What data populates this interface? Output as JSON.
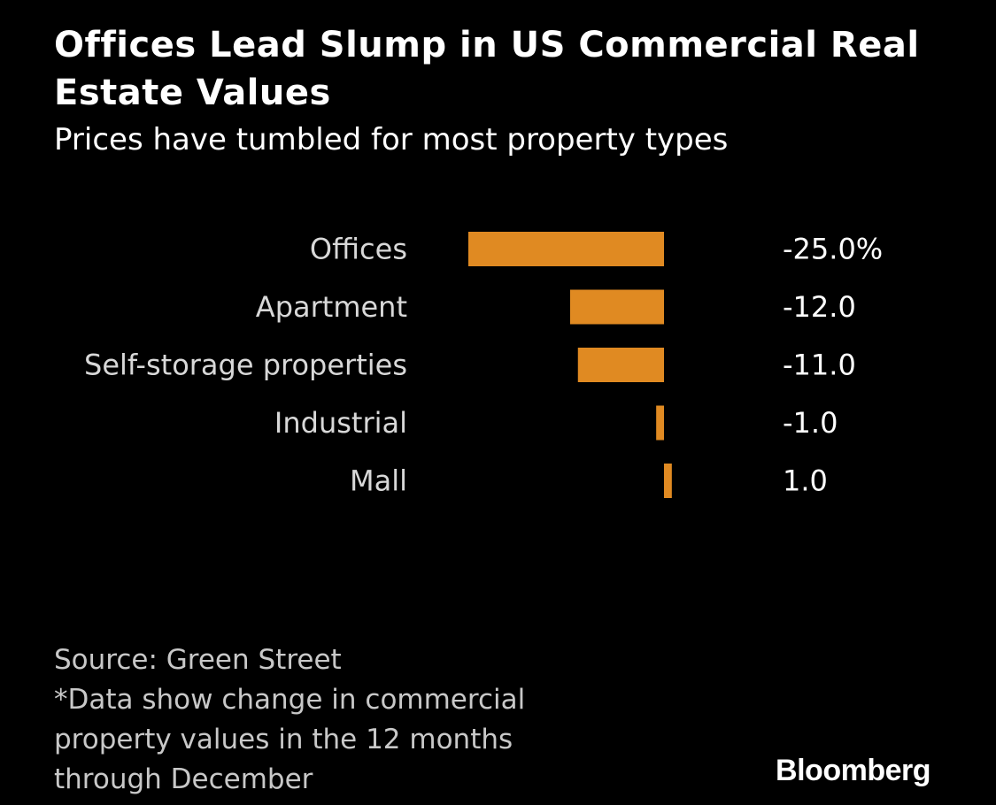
{
  "header": {
    "title": "Offices Lead Slump in US Commercial Real Estate Values",
    "subtitle": "Prices have tumbled for most property types"
  },
  "chart_data": {
    "type": "bar",
    "orientation": "horizontal",
    "categories": [
      "Offices",
      "Apartment",
      "Self-storage properties",
      "Industrial",
      "Mall"
    ],
    "values": [
      -25.0,
      -12.0,
      -11.0,
      -1.0,
      1.0
    ],
    "value_labels": [
      "-25.0%",
      "-12.0",
      "-11.0",
      "-1.0",
      "1.0"
    ],
    "title": "Offices Lead Slump in US Commercial Real Estate Values",
    "subtitle": "Prices have tumbled for most property types",
    "unit": "%",
    "bar_color": "#e08a22",
    "grid": false,
    "legend": "none"
  },
  "footer": {
    "source": "Source: Green Street",
    "note_lines": [
      "*Data show change in commercial",
      "property values in the 12 months",
      "through December"
    ],
    "brand": "Bloomberg"
  },
  "colors": {
    "background": "#000000",
    "bar": "#e08a22",
    "text": "#ffffff"
  }
}
